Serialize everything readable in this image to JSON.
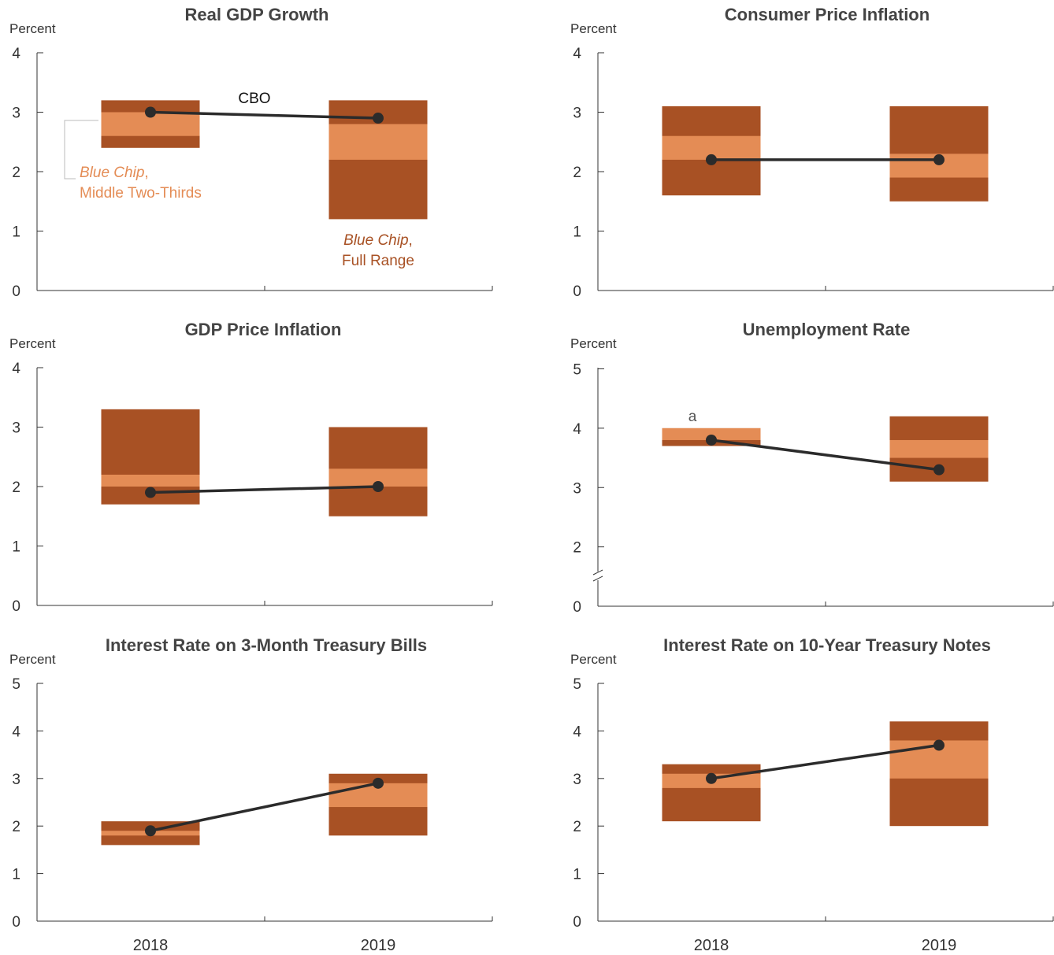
{
  "colors": {
    "full_range": "#a85124",
    "middle_two_thirds": "#e48c55",
    "cbo_line": "#2b2b2b",
    "text": "#333333",
    "title": "#444444",
    "bracket": "#bbbbbb"
  },
  "annotations": {
    "cbo": "CBO",
    "mid_name": "Blue Chip",
    "mid_rest": "Middle Two-Thirds",
    "full_name": "Blue Chip",
    "full_rest": "Full Range",
    "comma": ",",
    "footnote_a": "a"
  },
  "chart_data": [
    {
      "type": "range-bar",
      "title": "Real GDP Growth",
      "ylabel": "Percent",
      "ylim": [
        0,
        4
      ],
      "yticks": [
        0,
        1,
        2,
        3,
        4
      ],
      "categories": [
        "2018",
        "2019"
      ],
      "full_range": [
        [
          2.4,
          3.2
        ],
        [
          1.2,
          3.2
        ]
      ],
      "middle_two_thirds": [
        [
          2.6,
          3.0
        ],
        [
          2.2,
          2.8
        ]
      ],
      "cbo": [
        3.0,
        2.9
      ]
    },
    {
      "type": "range-bar",
      "title": "Consumer Price Inflation",
      "ylabel": "Percent",
      "ylim": [
        0,
        4
      ],
      "yticks": [
        0,
        1,
        2,
        3,
        4
      ],
      "categories": [
        "2018",
        "2019"
      ],
      "full_range": [
        [
          1.6,
          3.1
        ],
        [
          1.5,
          3.1
        ]
      ],
      "middle_two_thirds": [
        [
          2.2,
          2.6
        ],
        [
          1.9,
          2.3
        ]
      ],
      "cbo": [
        2.2,
        2.2
      ]
    },
    {
      "type": "range-bar",
      "title": "GDP Price Inflation",
      "ylabel": "Percent",
      "ylim": [
        0,
        4
      ],
      "yticks": [
        0,
        1,
        2,
        3,
        4
      ],
      "categories": [
        "2018",
        "2019"
      ],
      "full_range": [
        [
          1.7,
          3.3
        ],
        [
          1.5,
          3.0
        ]
      ],
      "middle_two_thirds": [
        [
          2.0,
          2.2
        ],
        [
          2.0,
          2.3
        ]
      ],
      "cbo": [
        1.9,
        2.0
      ]
    },
    {
      "type": "range-bar",
      "title": "Unemployment Rate",
      "ylabel": "Percent",
      "ylim": [
        0,
        5
      ],
      "yticks": [
        0,
        2,
        3,
        4,
        5
      ],
      "axis_break": true,
      "categories": [
        "2018",
        "2019"
      ],
      "full_range": [
        [
          3.7,
          4.0
        ],
        [
          3.1,
          4.2
        ]
      ],
      "middle_two_thirds": [
        [
          3.8,
          4.0
        ],
        [
          3.5,
          3.8
        ]
      ],
      "cbo": [
        3.8,
        3.3
      ]
    },
    {
      "type": "range-bar",
      "title": "Interest Rate on 3-Month Treasury Bills",
      "ylabel": "Percent",
      "ylim": [
        0,
        5
      ],
      "yticks": [
        0,
        1,
        2,
        3,
        4,
        5
      ],
      "categories": [
        "2018",
        "2019"
      ],
      "full_range": [
        [
          1.6,
          2.1
        ],
        [
          1.8,
          3.1
        ]
      ],
      "middle_two_thirds": [
        [
          1.8,
          1.9
        ],
        [
          2.4,
          2.9
        ]
      ],
      "cbo": [
        1.9,
        2.9
      ]
    },
    {
      "type": "range-bar",
      "title": "Interest Rate on 10-Year Treasury Notes",
      "ylabel": "Percent",
      "ylim": [
        0,
        5
      ],
      "yticks": [
        0,
        1,
        2,
        3,
        4,
        5
      ],
      "categories": [
        "2018",
        "2019"
      ],
      "full_range": [
        [
          2.1,
          3.3
        ],
        [
          2.0,
          4.2
        ]
      ],
      "middle_two_thirds": [
        [
          2.8,
          3.1
        ],
        [
          3.0,
          3.8
        ]
      ],
      "cbo": [
        3.0,
        3.7
      ]
    }
  ]
}
